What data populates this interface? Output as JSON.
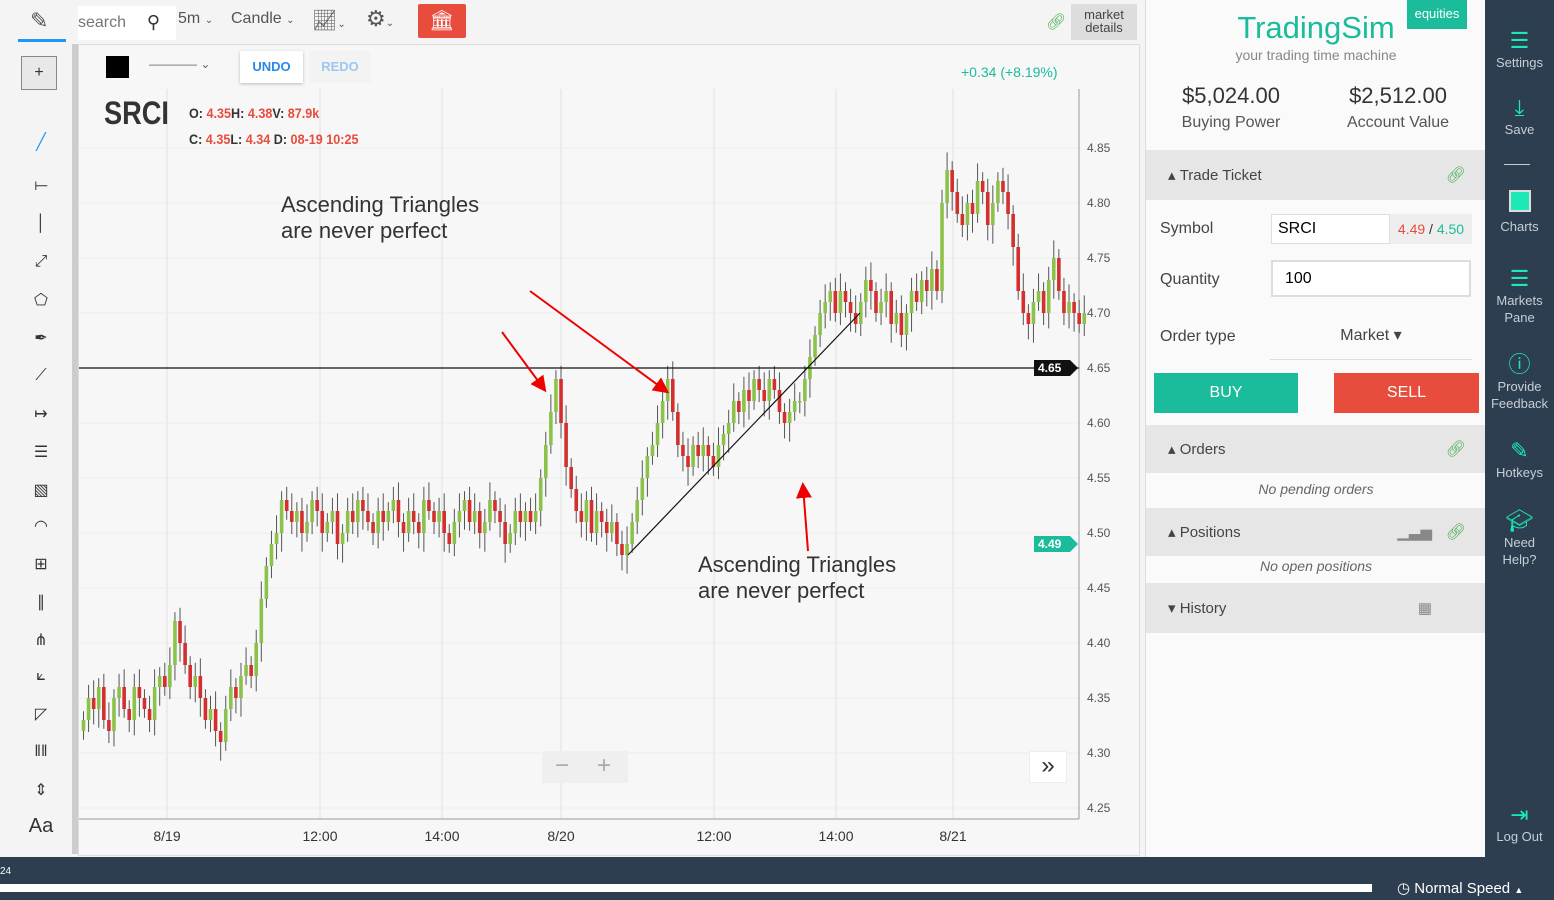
{
  "toolbar": {
    "search_placeholder": "search",
    "interval": "5m",
    "chart_type": "Candle",
    "market_details": "market details"
  },
  "drawing": {
    "undo": "UNDO",
    "redo": "REDO"
  },
  "legend": {
    "symbol": "SRCI",
    "o_label": "O:",
    "o": "4.35",
    "h_label": "H:",
    "h": "4.38",
    "v_label": "V:",
    "v": "87.9k",
    "c_label": "C:",
    "c": "4.35",
    "l_label": "L:",
    "l": "4.34",
    "d_label": "D:",
    "d": "08-19 10:25"
  },
  "change": "+0.34 (+8.19%)",
  "annotations": [
    "Ascending Triangles\nare never perfect",
    "Ascending Triangles\nare never perfect"
  ],
  "price_labels": {
    "current": "4.49",
    "line": "4.65"
  },
  "colors": {
    "up": "#8bc34a",
    "down": "#d32f2f",
    "accent": "#1abc9c",
    "sell": "#e74c3c",
    "nav": "#2c3e50"
  },
  "chart_data": {
    "type": "candlestick",
    "y_ticks": [
      "4.85",
      "4.80",
      "4.75",
      "4.70",
      "4.65",
      "4.60",
      "4.55",
      "4.50",
      "4.45",
      "4.40",
      "4.35",
      "4.30",
      "4.25"
    ],
    "ylim": [
      4.25,
      4.85
    ],
    "x_ticks": [
      "8/19",
      "12:00",
      "14:00",
      "8/20",
      "12:00",
      "14:00",
      "8/21"
    ],
    "horizontal_line": 4.65,
    "trendline": [
      4.48,
      4.7
    ],
    "closes": [
      4.33,
      4.35,
      4.34,
      4.36,
      4.33,
      4.32,
      4.35,
      4.36,
      4.34,
      4.33,
      4.36,
      4.35,
      4.34,
      4.33,
      4.36,
      4.37,
      4.36,
      4.38,
      4.42,
      4.4,
      4.38,
      4.36,
      4.37,
      4.35,
      4.33,
      4.34,
      4.32,
      4.31,
      4.34,
      4.36,
      4.35,
      4.37,
      4.38,
      4.37,
      4.4,
      4.44,
      4.47,
      4.49,
      4.5,
      4.53,
      4.52,
      4.51,
      4.52,
      4.5,
      4.51,
      4.53,
      4.52,
      4.5,
      4.51,
      4.52,
      4.49,
      4.5,
      4.52,
      4.51,
      4.53,
      4.52,
      4.51,
      4.5,
      4.52,
      4.51,
      4.52,
      4.53,
      4.51,
      4.5,
      4.52,
      4.51,
      4.5,
      4.53,
      4.52,
      4.51,
      4.52,
      4.5,
      4.49,
      4.51,
      4.52,
      4.53,
      4.51,
      4.52,
      4.5,
      4.51,
      4.53,
      4.52,
      4.51,
      4.49,
      4.5,
      4.52,
      4.51,
      4.52,
      4.51,
      4.52,
      4.55,
      4.58,
      4.61,
      4.64,
      4.6,
      4.56,
      4.54,
      4.52,
      4.51,
      4.53,
      4.5,
      4.52,
      4.51,
      4.5,
      4.51,
      4.49,
      4.48,
      4.49,
      4.51,
      4.53,
      4.55,
      4.57,
      4.58,
      4.6,
      4.62,
      4.64,
      4.61,
      4.58,
      4.57,
      4.56,
      4.58,
      4.57,
      4.58,
      4.57,
      4.56,
      4.58,
      4.59,
      4.6,
      4.62,
      4.61,
      4.63,
      4.62,
      4.64,
      4.63,
      4.62,
      4.64,
      4.63,
      4.61,
      4.6,
      4.61,
      4.62,
      4.62,
      4.64,
      4.66,
      4.68,
      4.7,
      4.71,
      4.72,
      4.7,
      4.72,
      4.71,
      4.7,
      4.69,
      4.71,
      4.73,
      4.72,
      4.7,
      4.71,
      4.72,
      4.69,
      4.7,
      4.68,
      4.7,
      4.72,
      4.71,
      4.73,
      4.72,
      4.74,
      4.72,
      4.8,
      4.83,
      4.81,
      4.79,
      4.78,
      4.8,
      4.79,
      4.82,
      4.81,
      4.78,
      4.8,
      4.82,
      4.81,
      4.79,
      4.76,
      4.72,
      4.7,
      4.69,
      4.71,
      4.72,
      4.7,
      4.73,
      4.75,
      4.72,
      4.7,
      4.71,
      4.7,
      4.69,
      4.7
    ]
  },
  "brand": {
    "name": "TradingSim",
    "tagline": "your trading time machine",
    "badge": "equities"
  },
  "account": {
    "buying_power": "$5,024.00",
    "buying_power_label": "Buying Power",
    "account_value": "$2,512.00",
    "account_value_label": "Account Value"
  },
  "ticket": {
    "title": "Trade Ticket",
    "symbol_label": "Symbol",
    "symbol": "SRCI",
    "bid": "4.49",
    "sep": " / ",
    "ask": "4.50",
    "quantity_label": "Quantity",
    "quantity": "100",
    "order_type_label": "Order type",
    "order_type": "Market",
    "buy": "BUY",
    "sell": "SELL"
  },
  "orders": {
    "title": "Orders",
    "empty": "No pending orders"
  },
  "positions": {
    "title": "Positions",
    "empty": "No open positions"
  },
  "history": {
    "title": "History"
  },
  "nav": [
    {
      "label": "Settings"
    },
    {
      "label": "Save"
    },
    {
      "label": "Charts"
    },
    {
      "label": "Markets Pane"
    },
    {
      "label": "Provide Feedback"
    },
    {
      "label": "Hotkeys"
    },
    {
      "label": "Need Help?"
    },
    {
      "label": "Log Out"
    }
  ],
  "bottom": {
    "time": "24",
    "speed": "Normal Speed"
  }
}
